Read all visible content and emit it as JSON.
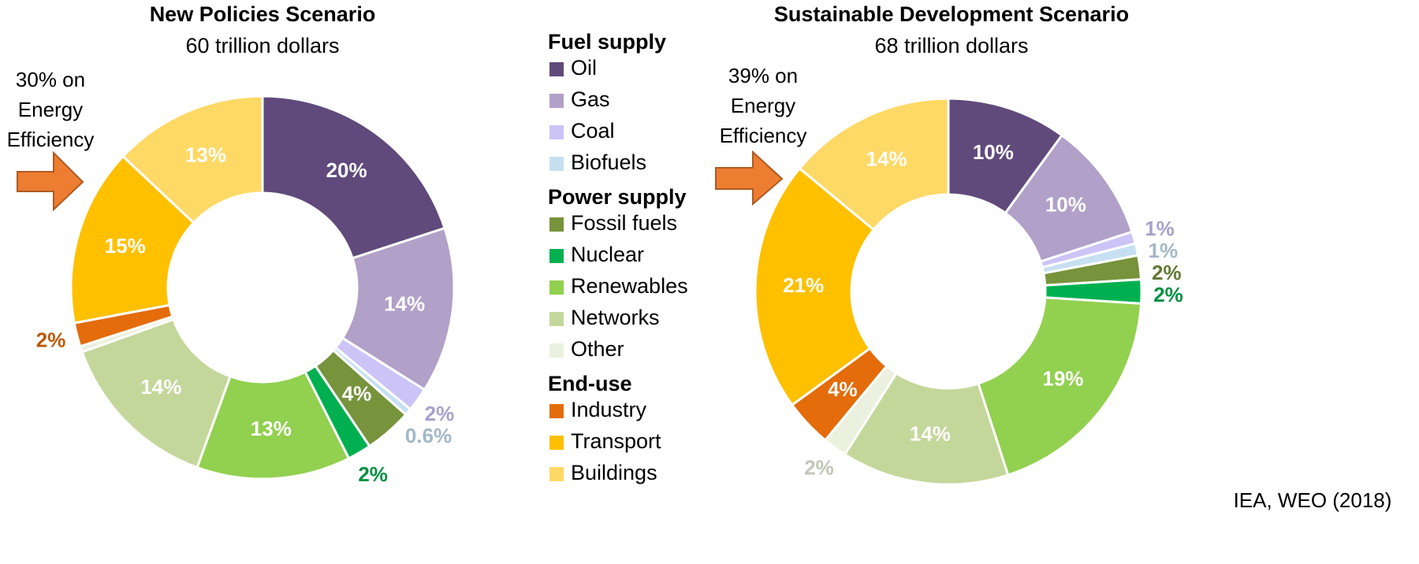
{
  "legend": {
    "groups": [
      {
        "title": "Fuel supply",
        "items": [
          {
            "name": "Oil",
            "color": "#604a7b"
          },
          {
            "name": "Gas",
            "color": "#b1a0c7"
          },
          {
            "name": "Coal",
            "color": "#ccc4f7"
          },
          {
            "name": "Biofuels",
            "color": "#c6e0f2"
          }
        ]
      },
      {
        "title": "Power supply",
        "items": [
          {
            "name": "Fossil fuels",
            "color": "#77933c"
          },
          {
            "name": "Nuclear",
            "color": "#00b050"
          },
          {
            "name": "Renewables",
            "color": "#92d050"
          },
          {
            "name": "Networks",
            "color": "#c4d79b"
          },
          {
            "name": "Other",
            "color": "#ebf1de"
          }
        ]
      },
      {
        "title": "End-use",
        "items": [
          {
            "name": "Industry",
            "color": "#e46c0a"
          },
          {
            "name": "Transport",
            "color": "#ffc000"
          },
          {
            "name": "Buildings",
            "color": "#ffd966"
          }
        ]
      }
    ]
  },
  "chart_data": [
    {
      "type": "donut",
      "title": "New Policies Scenario",
      "subtitle": "60 trillion dollars",
      "values": [
        20,
        14,
        2,
        0.6,
        4,
        2,
        13,
        14,
        0.5,
        2,
        15,
        13
      ],
      "value_labels": [
        "20%",
        "14%",
        "2%",
        "0.6%",
        "4%",
        "2%",
        "13%",
        "14%",
        null,
        "2%",
        "15%",
        "13%"
      ],
      "annotation": [
        "30% on",
        "Energy",
        "Efficiency"
      ]
    },
    {
      "type": "donut",
      "title": "Sustainable Development Scenario",
      "subtitle": "68 trillion dollars",
      "values": [
        10,
        10,
        1,
        1,
        2,
        2,
        19,
        14,
        2,
        4,
        21,
        14
      ],
      "value_labels": [
        "10%",
        "10%",
        "1%",
        "1%",
        "2%",
        "2%",
        "19%",
        "14%",
        "2%",
        "4%",
        "21%",
        "14%"
      ],
      "annotation": [
        "39% on",
        "Energy",
        "Efficiency"
      ]
    }
  ],
  "source": "IEA, WEO (2018)"
}
